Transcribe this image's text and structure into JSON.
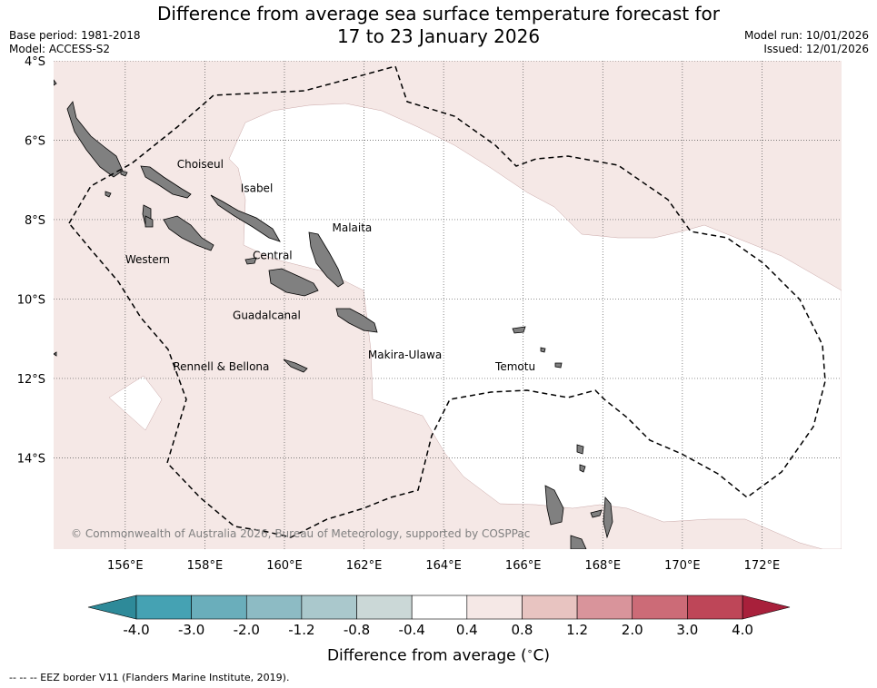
{
  "title_line1": "Difference from average sea surface temperature forecast for",
  "title_line2": "17 to 23 January 2026",
  "meta_left": [
    "Base period: 1981-2018",
    "Model: ACCESS-S2"
  ],
  "meta_right": [
    "Model run: 10/01/2026",
    "Issued: 12/01/2026"
  ],
  "map": {
    "lon_range": [
      154.2,
      174.0
    ],
    "lat_range": [
      -16.3,
      -4.0
    ],
    "lat_ticks": [
      {
        "value": -4,
        "label": "4°S"
      },
      {
        "value": -6,
        "label": "6°S"
      },
      {
        "value": -8,
        "label": "8°S"
      },
      {
        "value": -10,
        "label": "10°S"
      },
      {
        "value": -12,
        "label": "12°S"
      },
      {
        "value": -14,
        "label": "14°S"
      }
    ],
    "lon_ticks": [
      {
        "value": 156,
        "label": "156°E"
      },
      {
        "value": 158,
        "label": "158°E"
      },
      {
        "value": 160,
        "label": "160°E"
      },
      {
        "value": 162,
        "label": "162°E"
      },
      {
        "value": 164,
        "label": "164°E"
      },
      {
        "value": 166,
        "label": "166°E"
      },
      {
        "value": 168,
        "label": "168°E"
      },
      {
        "value": 170,
        "label": "170°E"
      },
      {
        "value": 172,
        "label": "172°E"
      }
    ],
    "province_labels": [
      {
        "name": "Choiseul",
        "lon": 157.3,
        "lat": -6.7
      },
      {
        "name": "Isabel",
        "lon": 158.9,
        "lat": -7.3
      },
      {
        "name": "Malaita",
        "lon": 161.2,
        "lat": -8.3
      },
      {
        "name": "Western",
        "lon": 156.0,
        "lat": -9.1
      },
      {
        "name": "Central",
        "lon": 159.2,
        "lat": -9.0
      },
      {
        "name": "Guadalcanal",
        "lon": 158.7,
        "lat": -10.5
      },
      {
        "name": "Makira-Ulawa",
        "lon": 162.1,
        "lat": -11.5
      },
      {
        "name": "Temotu",
        "lon": 165.3,
        "lat": -11.8
      },
      {
        "name": "Rennell & Bellona",
        "lon": 157.2,
        "lat": -11.8
      }
    ],
    "copyright": "© Commonwealth of Australia 2026, Bureau of Meteorology, supported by COSPPac",
    "land_color": "#808080",
    "warm_color": "#f5e8e6",
    "neutral_color": "#ffffff"
  },
  "colorbar": {
    "ticks": [
      "-4.0",
      "-3.0",
      "-2.0",
      "-1.2",
      "-0.8",
      "-0.4",
      "0.4",
      "0.8",
      "1.2",
      "2.0",
      "3.0",
      "4.0"
    ],
    "colors": [
      "#45a2b3",
      "#6aaebb",
      "#8dbbc4",
      "#aac8cc",
      "#cbd8d7",
      "#ffffff",
      "#f5e8e6",
      "#e8c4c1",
      "#d9949b",
      "#cc6b77",
      "#be4658"
    ],
    "extend_low": "#2e8a99",
    "extend_high": "#a8203b",
    "label": "Difference from average ($^\\circ$C)"
  },
  "footnote": "--  --  -- EEZ border V11 (Flanders Marine Institute, 2019)."
}
